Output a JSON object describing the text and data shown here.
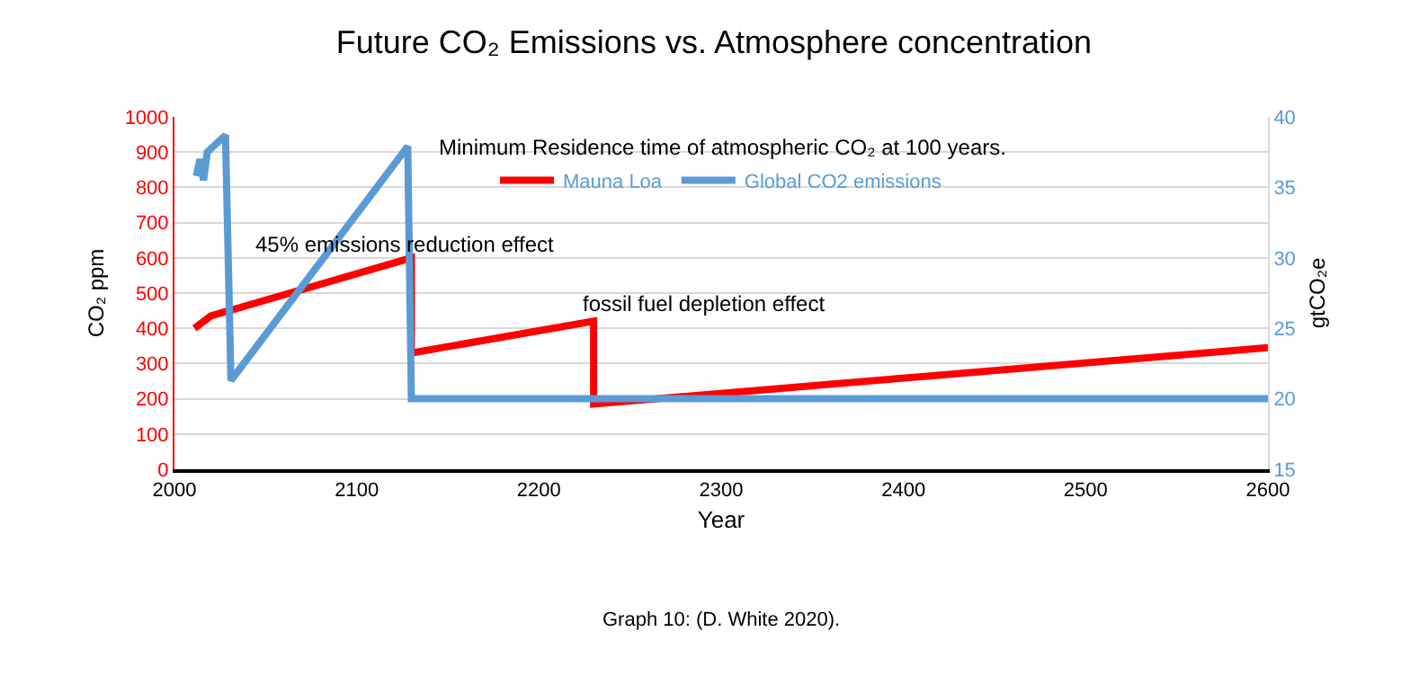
{
  "chart_data": {
    "type": "line",
    "title": "Future CO₂ Emissions vs. Atmosphere concentration",
    "xlabel": "Year",
    "ylabel": "CO₂ ppm",
    "y2label": "gtCO₂e",
    "series": [
      {
        "name": "Mauna Loa",
        "color": "#ff0000",
        "x": [
          2011,
          2020,
          2130,
          2130,
          2230,
          2230,
          2600
        ],
        "values": [
          400,
          435,
          600,
          330,
          420,
          185,
          345
        ]
      },
      {
        "name": "Global CO2 emissions",
        "color": "#5b9bd5",
        "axis": "y2",
        "x": [
          2012,
          2014,
          2016,
          2018,
          2028,
          2031,
          2128,
          2130,
          2600
        ],
        "values": [
          35.8,
          37,
          35.5,
          37.5,
          38.7,
          21.3,
          37.9,
          20,
          20
        ]
      }
    ],
    "xlim": [
      2000,
      2600
    ],
    "xticks": [
      2000,
      2100,
      2200,
      2300,
      2400,
      2500,
      2600
    ],
    "ylim": [
      0,
      1000
    ],
    "yticks": [
      0,
      100,
      200,
      300,
      400,
      500,
      600,
      700,
      800,
      900,
      1000
    ],
    "y2lim": [
      15,
      40
    ],
    "y2ticks": [
      15,
      20,
      25,
      30,
      35,
      40
    ],
    "grid": "y",
    "legend": "top",
    "marker": "none",
    "line_style": "solid",
    "annotations": [
      "Minimum Residence time of atmospheric CO₂ at 100 years.",
      "45% emissions reduction effect",
      "fossil fuel depletion effect",
      "Graph 10: (D. White 2020)."
    ]
  }
}
